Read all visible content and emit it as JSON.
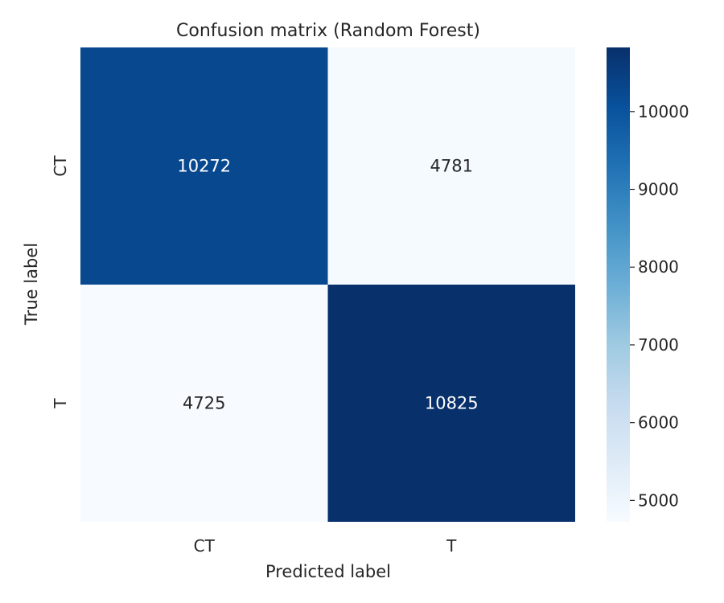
{
  "chart_data": {
    "type": "heatmap",
    "title": "Confusion matrix (Random Forest)",
    "xlabel": "Predicted label",
    "ylabel": "True label",
    "x_categories": [
      "CT",
      "T"
    ],
    "y_categories": [
      "CT",
      "T"
    ],
    "values": [
      [
        10272,
        4781
      ],
      [
        4725,
        10825
      ]
    ],
    "colormap": "Blues",
    "colorbar": {
      "range": [
        4725,
        10825
      ],
      "ticks": [
        5000,
        6000,
        7000,
        8000,
        9000,
        10000
      ]
    },
    "grid": false,
    "legend": "colorbar-right"
  }
}
